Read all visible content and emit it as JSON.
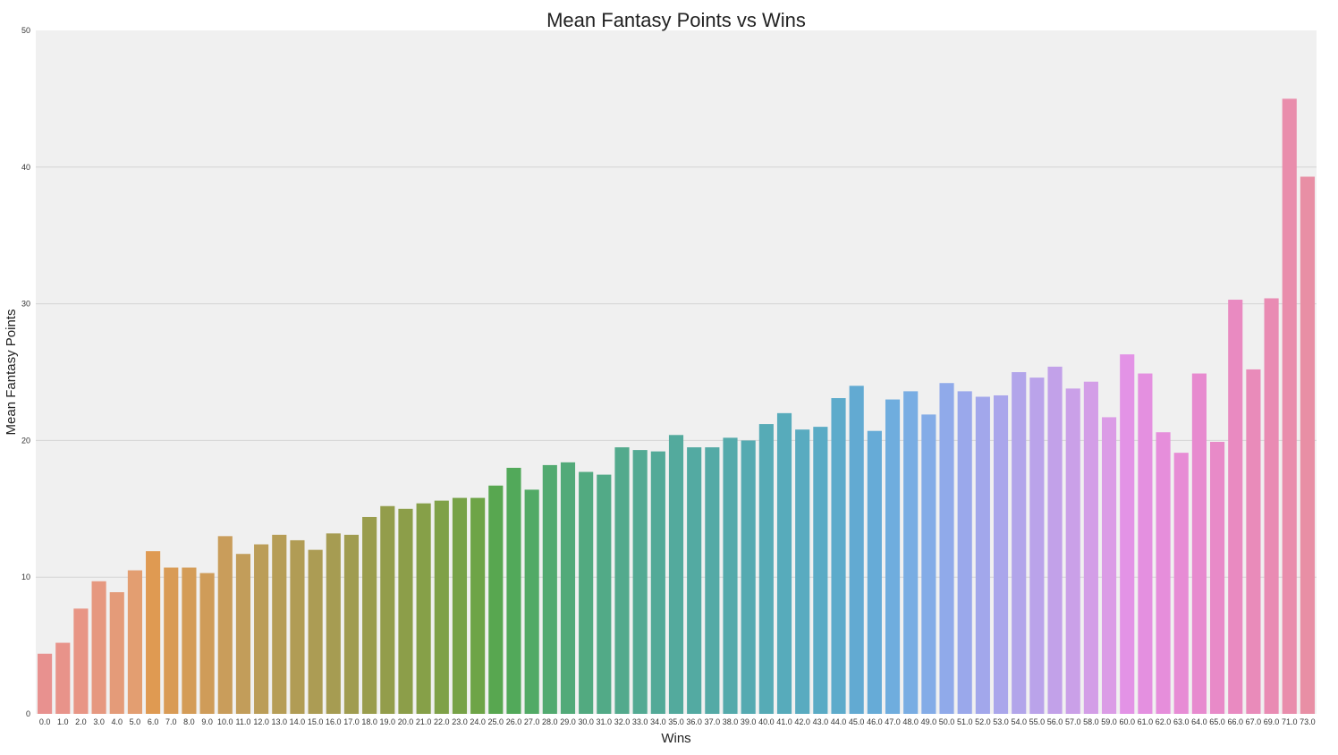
{
  "chart_data": {
    "type": "bar",
    "title": "Mean Fantasy Points vs Wins",
    "xlabel": "Wins",
    "ylabel": "Mean Fantasy Points",
    "ylim": [
      0,
      50
    ],
    "yticks": [
      "0",
      "10",
      "20",
      "30",
      "40",
      "50"
    ],
    "grid": true,
    "background": "#f0f0f0",
    "gridColor": "#d4d4d4",
    "categories": [
      "0.0",
      "1.0",
      "2.0",
      "3.0",
      "4.0",
      "5.0",
      "6.0",
      "7.0",
      "8.0",
      "9.0",
      "10.0",
      "11.0",
      "12.0",
      "13.0",
      "14.0",
      "15.0",
      "16.0",
      "17.0",
      "18.0",
      "19.0",
      "20.0",
      "21.0",
      "22.0",
      "23.0",
      "24.0",
      "25.0",
      "26.0",
      "27.0",
      "28.0",
      "29.0",
      "30.0",
      "31.0",
      "32.0",
      "33.0",
      "34.0",
      "35.0",
      "36.0",
      "37.0",
      "38.0",
      "39.0",
      "40.0",
      "41.0",
      "42.0",
      "43.0",
      "44.0",
      "45.0",
      "46.0",
      "47.0",
      "48.0",
      "49.0",
      "50.0",
      "51.0",
      "52.0",
      "53.0",
      "54.0",
      "55.0",
      "56.0",
      "57.0",
      "58.0",
      "59.0",
      "60.0",
      "61.0",
      "62.0",
      "63.0",
      "64.0",
      "65.0",
      "66.0",
      "67.0",
      "69.0",
      "71.0",
      "73.0"
    ],
    "values": [
      4.4,
      5.2,
      7.7,
      9.7,
      8.9,
      10.5,
      11.9,
      10.7,
      10.7,
      10.3,
      13.0,
      11.7,
      12.4,
      13.1,
      12.7,
      12.0,
      13.2,
      13.1,
      14.4,
      15.2,
      15.0,
      15.4,
      15.6,
      15.8,
      15.8,
      16.7,
      18.0,
      16.4,
      18.2,
      18.4,
      17.7,
      17.5,
      19.5,
      19.3,
      19.2,
      20.4,
      19.5,
      19.5,
      20.2,
      20.0,
      21.2,
      22.0,
      20.8,
      21.0,
      23.1,
      24.0,
      20.7,
      23.0,
      23.6,
      21.9,
      24.2,
      23.6,
      23.2,
      23.3,
      25.0,
      24.6,
      25.4,
      23.8,
      24.3,
      21.7,
      26.3,
      24.9,
      20.6,
      19.1,
      24.9,
      19.9,
      30.3,
      25.2,
      30.4,
      45.0,
      39.3
    ],
    "colors": [
      "#e8918f",
      "#e8938a",
      "#e89585",
      "#e69880",
      "#e49b79",
      "#e39e71",
      "#df9a52",
      "#d99b55",
      "#d49c57",
      "#cf9c59",
      "#c99d5b",
      "#c29d5a",
      "#bb9d58",
      "#b69d56",
      "#b19c55",
      "#ac9c54",
      "#a69c52",
      "#a09c50",
      "#9a9d4d",
      "#939d4b",
      "#8c9e49",
      "#86a048",
      "#7fa148",
      "#77a247",
      "#6ea447",
      "#58a750",
      "#52a95a",
      "#52aa66",
      "#52aa70",
      "#52aa79",
      "#52aa80",
      "#52aa87",
      "#53aa8d",
      "#53aa93",
      "#53aa98",
      "#53aa9d",
      "#53aaa2",
      "#54aaa6",
      "#54aaab",
      "#55aab1",
      "#56abb6",
      "#57abbb",
      "#59abc0",
      "#5aabc5",
      "#5dabcb",
      "#62aad2",
      "#66abd7",
      "#6fadde",
      "#79ade3",
      "#84ace7",
      "#90aaea",
      "#9aa8eb",
      "#a2a7eb",
      "#aaa6eb",
      "#b2a5ea",
      "#baa3ea",
      "#c2a1e9",
      "#caa0e8",
      "#d39ee7",
      "#db9ce6",
      "#e393e6",
      "#e490e0",
      "#e68edb",
      "#e78cd5",
      "#e78acf",
      "#e88ac8",
      "#e98ac1",
      "#e98bba",
      "#e98bb3",
      "#e98dac",
      "#e88fa5"
    ]
  }
}
